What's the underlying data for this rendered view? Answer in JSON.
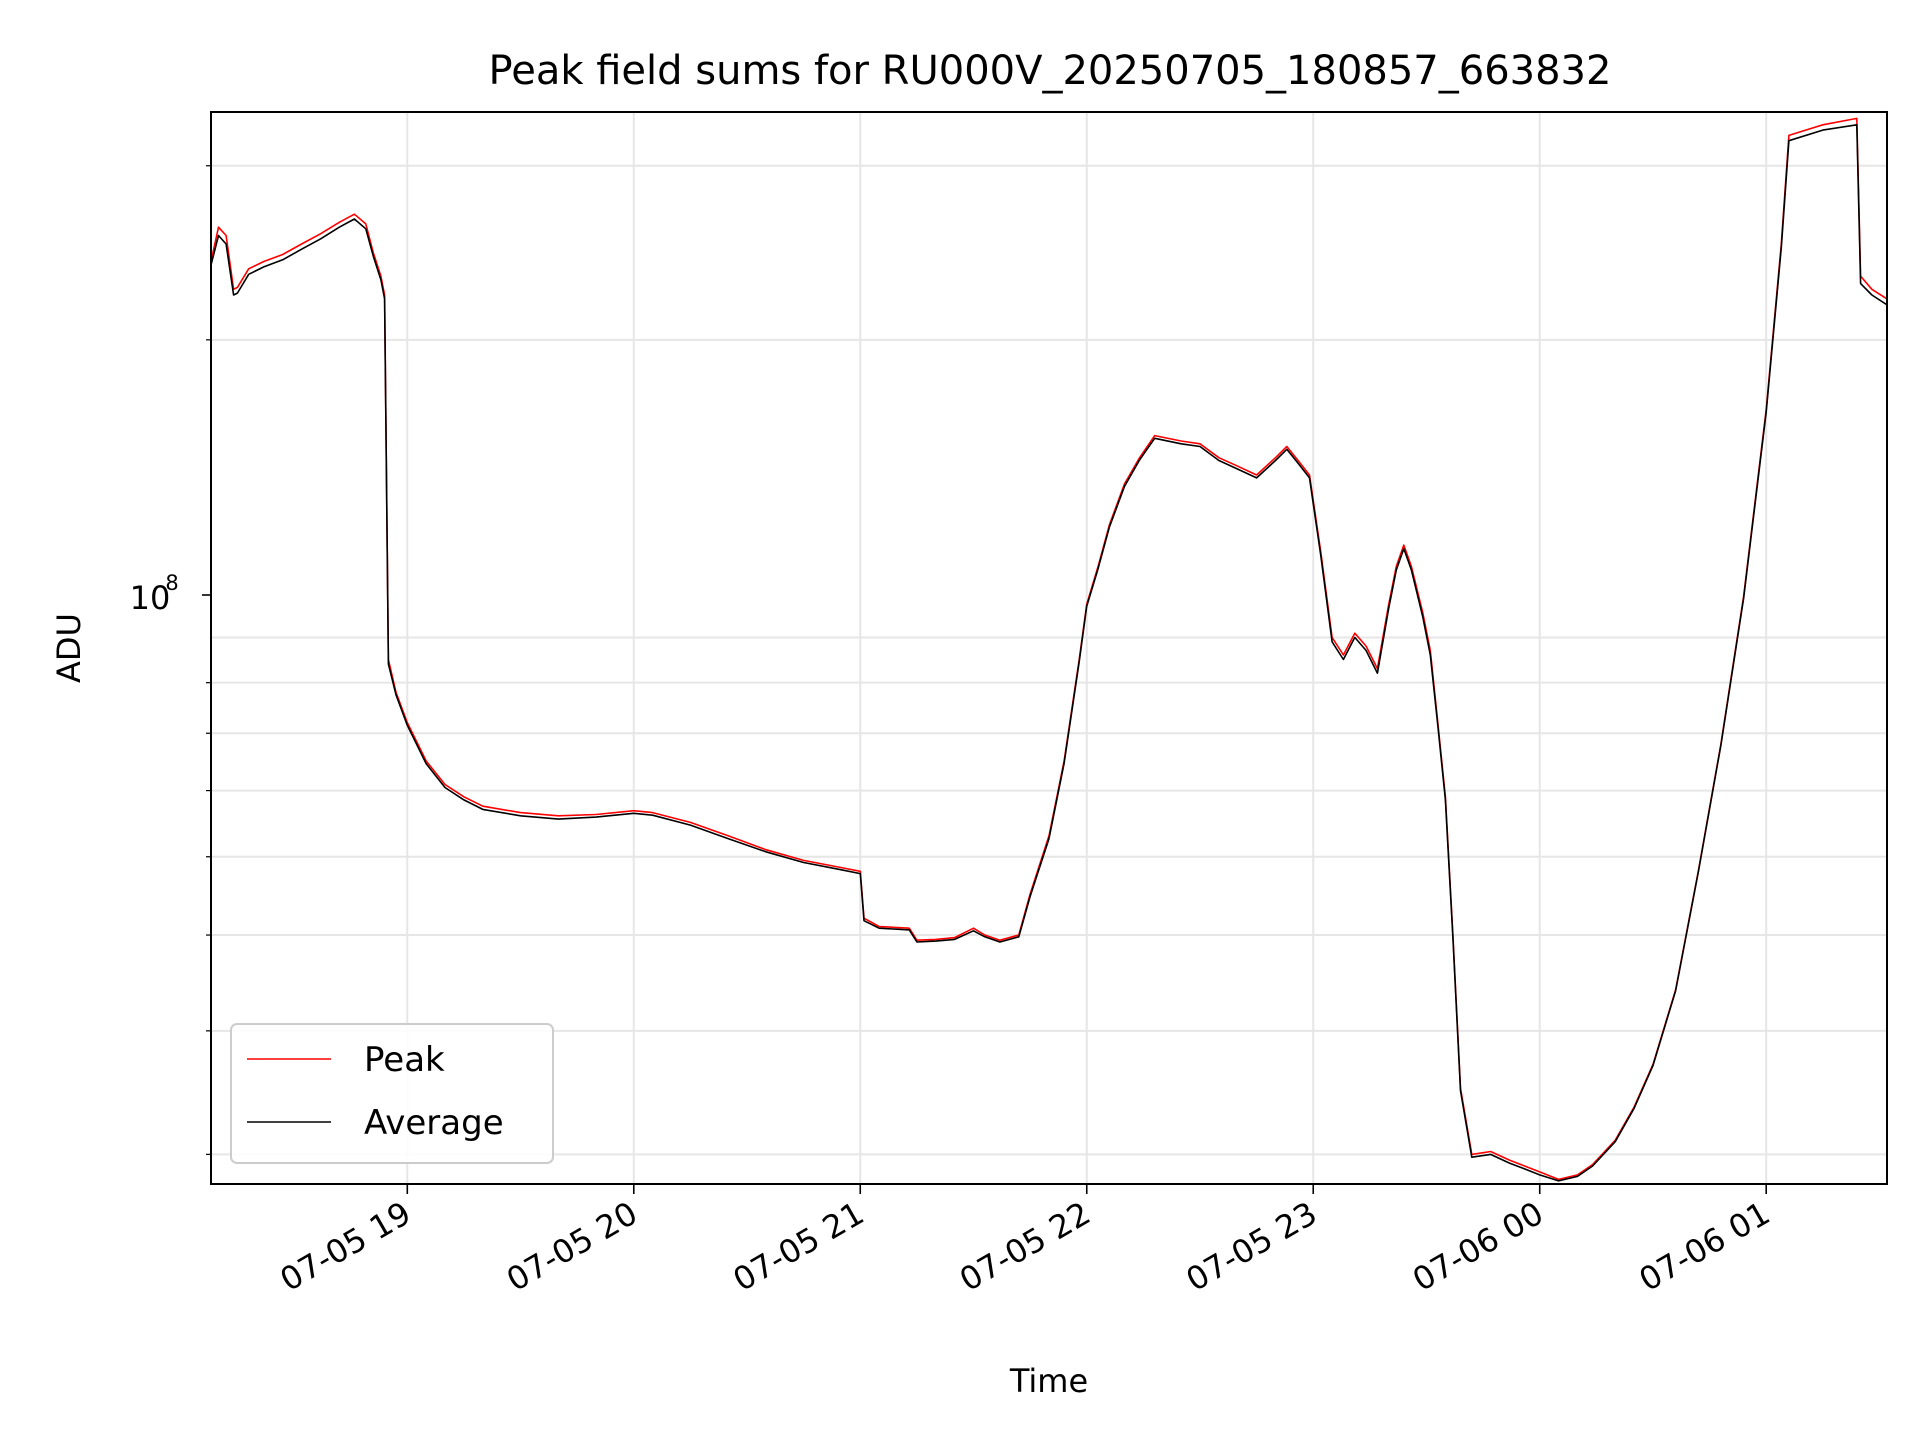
{
  "chart_data": {
    "type": "line",
    "title": "Peak field sums for RU000V_20250705_180857_663832",
    "xlabel": "Time",
    "ylabel": "ADU",
    "yscale": "log",
    "grid": true,
    "legend_position": "lower-left",
    "x_ticks": [
      "07-05 19",
      "07-05 20",
      "07-05 21",
      "07-05 22",
      "07-05 23",
      "07-06 00",
      "07-06 01"
    ],
    "y_tick_label": {
      "base": "10",
      "exponent": "8"
    },
    "xlim": [
      "2025-07-05 18:08",
      "2025-07-06 01:32"
    ],
    "ylim": [
      28000000,
      340000000
    ],
    "colors": {
      "Peak": "#ff0000",
      "Average": "#000000"
    },
    "series": [
      {
        "name": "Peak",
        "points": [
          [
            "2025-07-05 18:08",
            240000000
          ],
          [
            "2025-07-05 18:10",
            260000000
          ],
          [
            "2025-07-05 18:12",
            255000000
          ],
          [
            "2025-07-05 18:14",
            225000000
          ],
          [
            "2025-07-05 18:15",
            226000000
          ],
          [
            "2025-07-05 18:18",
            236000000
          ],
          [
            "2025-07-05 18:22",
            240000000
          ],
          [
            "2025-07-05 18:27",
            244000000
          ],
          [
            "2025-07-05 18:32",
            250000000
          ],
          [
            "2025-07-05 18:37",
            256000000
          ],
          [
            "2025-07-05 18:42",
            263000000
          ],
          [
            "2025-07-05 18:46",
            268000000
          ],
          [
            "2025-07-05 18:49",
            262000000
          ],
          [
            "2025-07-05 18:51",
            245000000
          ],
          [
            "2025-07-05 18:53",
            232000000
          ],
          [
            "2025-07-05 18:54",
            222000000
          ],
          [
            "2025-07-05 18:55",
            95000000
          ],
          [
            "2025-07-05 18:57",
            88000000
          ],
          [
            "2025-07-05 19:00",
            82000000
          ],
          [
            "2025-07-05 19:05",
            75000000
          ],
          [
            "2025-07-05 19:10",
            71000000
          ],
          [
            "2025-07-05 19:15",
            69000000
          ],
          [
            "2025-07-05 19:20",
            67500000
          ],
          [
            "2025-07-05 19:30",
            66500000
          ],
          [
            "2025-07-05 19:40",
            66000000
          ],
          [
            "2025-07-05 19:50",
            66200000
          ],
          [
            "2025-07-05 20:00",
            66800000
          ],
          [
            "2025-07-05 20:05",
            66500000
          ],
          [
            "2025-07-05 20:15",
            65000000
          ],
          [
            "2025-07-05 20:25",
            63000000
          ],
          [
            "2025-07-05 20:35",
            61000000
          ],
          [
            "2025-07-05 20:45",
            59500000
          ],
          [
            "2025-07-05 20:55",
            58500000
          ],
          [
            "2025-07-05 21:00",
            58000000
          ],
          [
            "2025-07-05 21:01",
            52000000
          ],
          [
            "2025-07-05 21:05",
            51000000
          ],
          [
            "2025-07-05 21:13",
            50800000
          ],
          [
            "2025-07-05 21:15",
            49400000
          ],
          [
            "2025-07-05 21:20",
            49500000
          ],
          [
            "2025-07-05 21:25",
            49700000
          ],
          [
            "2025-07-05 21:30",
            50800000
          ],
          [
            "2025-07-05 21:33",
            50000000
          ],
          [
            "2025-07-05 21:37",
            49400000
          ],
          [
            "2025-07-05 21:42",
            50000000
          ],
          [
            "2025-07-05 21:45",
            55000000
          ],
          [
            "2025-07-05 21:50",
            63000000
          ],
          [
            "2025-07-05 21:54",
            75000000
          ],
          [
            "2025-07-05 21:58",
            95000000
          ],
          [
            "2025-07-05 22:00",
            108000000
          ],
          [
            "2025-07-05 22:03",
            118000000
          ],
          [
            "2025-07-05 22:06",
            130000000
          ],
          [
            "2025-07-05 22:10",
            143000000
          ],
          [
            "2025-07-05 22:14",
            152000000
          ],
          [
            "2025-07-05 22:18",
            160000000
          ],
          [
            "2025-07-05 22:25",
            158000000
          ],
          [
            "2025-07-05 22:30",
            157000000
          ],
          [
            "2025-07-05 22:35",
            152000000
          ],
          [
            "2025-07-05 22:40",
            149000000
          ],
          [
            "2025-07-05 22:45",
            146000000
          ],
          [
            "2025-07-05 22:50",
            152000000
          ],
          [
            "2025-07-05 22:53",
            156000000
          ],
          [
            "2025-07-05 22:56",
            151000000
          ],
          [
            "2025-07-05 22:59",
            146000000
          ],
          [
            "2025-07-05 23:02",
            122000000
          ],
          [
            "2025-07-05 23:05",
            100000000
          ],
          [
            "2025-07-05 23:08",
            96000000
          ],
          [
            "2025-07-05 23:11",
            101000000
          ],
          [
            "2025-07-05 23:14",
            98000000
          ],
          [
            "2025-07-05 23:17",
            93000000
          ],
          [
            "2025-07-05 23:20",
            108000000
          ],
          [
            "2025-07-05 23:22",
            118000000
          ],
          [
            "2025-07-05 23:24",
            124000000
          ],
          [
            "2025-07-05 23:26",
            118000000
          ],
          [
            "2025-07-05 23:29",
            106000000
          ],
          [
            "2025-07-05 23:31",
            97000000
          ],
          [
            "2025-07-05 23:33",
            82000000
          ],
          [
            "2025-07-05 23:35",
            69000000
          ],
          [
            "2025-07-05 23:37",
            50000000
          ],
          [
            "2025-07-05 23:39",
            35000000
          ],
          [
            "2025-07-05 23:42",
            30000000
          ],
          [
            "2025-07-05 23:47",
            30200000
          ],
          [
            "2025-07-05 23:52",
            29600000
          ],
          [
            "2025-07-05 23:56",
            29200000
          ],
          [
            "2025-07-06 00:00",
            28800000
          ],
          [
            "2025-07-06 00:05",
            28300000
          ],
          [
            "2025-07-06 00:10",
            28600000
          ],
          [
            "2025-07-06 00:14",
            29300000
          ],
          [
            "2025-07-06 00:20",
            31000000
          ],
          [
            "2025-07-06 00:25",
            33500000
          ],
          [
            "2025-07-06 00:30",
            37000000
          ],
          [
            "2025-07-06 00:36",
            44000000
          ],
          [
            "2025-07-06 00:42",
            58000000
          ],
          [
            "2025-07-06 00:48",
            78000000
          ],
          [
            "2025-07-06 00:54",
            110000000
          ],
          [
            "2025-07-06 01:00",
            170000000
          ],
          [
            "2025-07-06 01:04",
            250000000
          ],
          [
            "2025-07-06 01:06",
            322000000
          ],
          [
            "2025-07-06 01:15",
            330000000
          ],
          [
            "2025-07-06 01:24",
            335000000
          ],
          [
            "2025-07-06 01:25",
            232000000
          ],
          [
            "2025-07-06 01:28",
            225000000
          ],
          [
            "2025-07-06 01:32",
            220000000
          ]
        ]
      },
      {
        "name": "Average",
        "points": [
          [
            "2025-07-05 18:08",
            238000000
          ],
          [
            "2025-07-05 18:10",
            255000000
          ],
          [
            "2025-07-05 18:12",
            250000000
          ],
          [
            "2025-07-05 18:14",
            222000000
          ],
          [
            "2025-07-05 18:15",
            223000000
          ],
          [
            "2025-07-05 18:18",
            233000000
          ],
          [
            "2025-07-05 18:22",
            237000000
          ],
          [
            "2025-07-05 18:27",
            241000000
          ],
          [
            "2025-07-05 18:32",
            247000000
          ],
          [
            "2025-07-05 18:37",
            253000000
          ],
          [
            "2025-07-05 18:42",
            260000000
          ],
          [
            "2025-07-05 18:46",
            265000000
          ],
          [
            "2025-07-05 18:49",
            259000000
          ],
          [
            "2025-07-05 18:51",
            243000000
          ],
          [
            "2025-07-05 18:53",
            230000000
          ],
          [
            "2025-07-05 18:54",
            220000000
          ],
          [
            "2025-07-05 18:55",
            94000000
          ],
          [
            "2025-07-05 18:57",
            87500000
          ],
          [
            "2025-07-05 19:00",
            81500000
          ],
          [
            "2025-07-05 19:05",
            74500000
          ],
          [
            "2025-07-05 19:10",
            70500000
          ],
          [
            "2025-07-05 19:15",
            68500000
          ],
          [
            "2025-07-05 19:20",
            67000000
          ],
          [
            "2025-07-05 19:30",
            66000000
          ],
          [
            "2025-07-05 19:40",
            65500000
          ],
          [
            "2025-07-05 19:50",
            65800000
          ],
          [
            "2025-07-05 20:00",
            66400000
          ],
          [
            "2025-07-05 20:05",
            66100000
          ],
          [
            "2025-07-05 20:15",
            64600000
          ],
          [
            "2025-07-05 20:25",
            62600000
          ],
          [
            "2025-07-05 20:35",
            60700000
          ],
          [
            "2025-07-05 20:45",
            59200000
          ],
          [
            "2025-07-05 20:55",
            58200000
          ],
          [
            "2025-07-05 21:00",
            57700000
          ],
          [
            "2025-07-05 21:01",
            51700000
          ],
          [
            "2025-07-05 21:05",
            50800000
          ],
          [
            "2025-07-05 21:13",
            50600000
          ],
          [
            "2025-07-05 21:15",
            49200000
          ],
          [
            "2025-07-05 21:20",
            49300000
          ],
          [
            "2025-07-05 21:25",
            49500000
          ],
          [
            "2025-07-05 21:30",
            50500000
          ],
          [
            "2025-07-05 21:33",
            49800000
          ],
          [
            "2025-07-05 21:37",
            49200000
          ],
          [
            "2025-07-05 21:42",
            49800000
          ],
          [
            "2025-07-05 21:45",
            54700000
          ],
          [
            "2025-07-05 21:50",
            62600000
          ],
          [
            "2025-07-05 21:54",
            74600000
          ],
          [
            "2025-07-05 21:58",
            94500000
          ],
          [
            "2025-07-05 22:00",
            107500000
          ],
          [
            "2025-07-05 22:03",
            117400000
          ],
          [
            "2025-07-05 22:06",
            129300000
          ],
          [
            "2025-07-05 22:10",
            142200000
          ],
          [
            "2025-07-05 22:14",
            151200000
          ],
          [
            "2025-07-05 22:18",
            159000000
          ],
          [
            "2025-07-05 22:25",
            157000000
          ],
          [
            "2025-07-05 22:30",
            156000000
          ],
          [
            "2025-07-05 22:35",
            151000000
          ],
          [
            "2025-07-05 22:40",
            148000000
          ],
          [
            "2025-07-05 22:45",
            145000000
          ],
          [
            "2025-07-05 22:50",
            151000000
          ],
          [
            "2025-07-05 22:53",
            155000000
          ],
          [
            "2025-07-05 22:56",
            150000000
          ],
          [
            "2025-07-05 22:59",
            145000000
          ],
          [
            "2025-07-05 23:02",
            121000000
          ],
          [
            "2025-07-05 23:05",
            99000000
          ],
          [
            "2025-07-05 23:08",
            95000000
          ],
          [
            "2025-07-05 23:11",
            100000000
          ],
          [
            "2025-07-05 23:14",
            97000000
          ],
          [
            "2025-07-05 23:17",
            92000000
          ],
          [
            "2025-07-05 23:20",
            107000000
          ],
          [
            "2025-07-05 23:22",
            117000000
          ],
          [
            "2025-07-05 23:24",
            123000000
          ],
          [
            "2025-07-05 23:26",
            117000000
          ],
          [
            "2025-07-05 23:29",
            105000000
          ],
          [
            "2025-07-05 23:31",
            96000000
          ],
          [
            "2025-07-05 23:33",
            81500000
          ],
          [
            "2025-07-05 23:35",
            68500000
          ],
          [
            "2025-07-05 23:37",
            49700000
          ],
          [
            "2025-07-05 23:39",
            34800000
          ],
          [
            "2025-07-05 23:42",
            29800000
          ],
          [
            "2025-07-05 23:47",
            30000000
          ],
          [
            "2025-07-05 23:52",
            29400000
          ],
          [
            "2025-07-05 23:56",
            29000000
          ],
          [
            "2025-07-06 00:00",
            28600000
          ],
          [
            "2025-07-06 00:05",
            28200000
          ],
          [
            "2025-07-06 00:10",
            28500000
          ],
          [
            "2025-07-06 00:14",
            29200000
          ],
          [
            "2025-07-06 00:20",
            30900000
          ],
          [
            "2025-07-06 00:25",
            33400000
          ],
          [
            "2025-07-06 00:30",
            36900000
          ],
          [
            "2025-07-06 00:36",
            43900000
          ],
          [
            "2025-07-06 00:42",
            57900000
          ],
          [
            "2025-07-06 00:48",
            77800000
          ],
          [
            "2025-07-06 00:54",
            109500000
          ],
          [
            "2025-07-06 01:00",
            169000000
          ],
          [
            "2025-07-06 01:04",
            248000000
          ],
          [
            "2025-07-06 01:06",
            318000000
          ],
          [
            "2025-07-06 01:15",
            326000000
          ],
          [
            "2025-07-06 01:24",
            330000000
          ],
          [
            "2025-07-06 01:25",
            228000000
          ],
          [
            "2025-07-06 01:28",
            222000000
          ],
          [
            "2025-07-06 01:32",
            217000000
          ]
        ]
      }
    ]
  }
}
